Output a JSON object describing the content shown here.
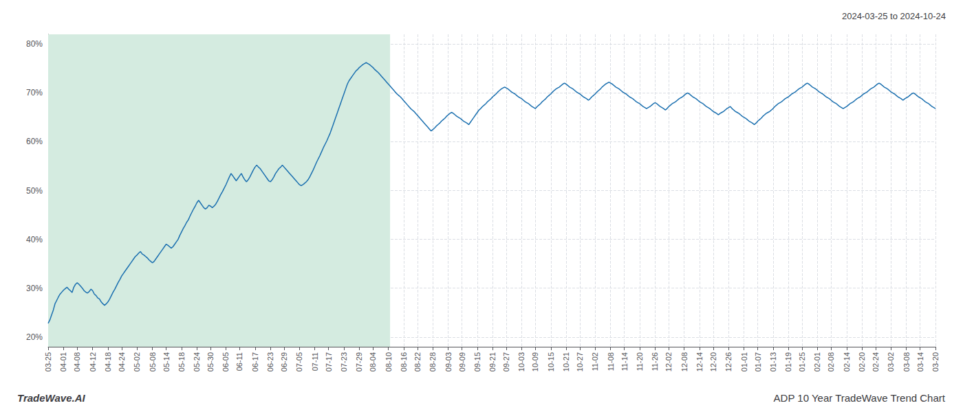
{
  "chart_data": {
    "type": "line",
    "title": "2024-03-25 to 2024-10-24",
    "annotations": [
      "TradeWave.AI",
      "ADP 10 Year TradeWave Trend Chart"
    ],
    "color": "#1a6faf",
    "grid": true,
    "ylim": [
      0.18,
      0.82
    ],
    "yticks": [
      {
        "value": 0.2,
        "label": "20%"
      },
      {
        "value": 0.3,
        "label": "30%"
      },
      {
        "value": 0.4,
        "label": "40%"
      },
      {
        "value": 0.5,
        "label": "50%"
      },
      {
        "value": 0.6,
        "label": "60%"
      },
      {
        "value": 0.7,
        "label": "70%"
      },
      {
        "value": 0.8,
        "label": "80%"
      }
    ],
    "shaded_span": {
      "from": 0,
      "to": 200,
      "color": "#d4ebe0"
    },
    "categories": [
      "03-25",
      null,
      null,
      null,
      null,
      null,
      null,
      null,
      null,
      "04-01",
      null,
      null,
      null,
      null,
      null,
      null,
      null,
      "04-08",
      null,
      null,
      null,
      null,
      null,
      null,
      null,
      null,
      "04-12",
      null,
      null,
      null,
      null,
      null,
      null,
      null,
      null,
      "04-18",
      null,
      null,
      null,
      null,
      null,
      null,
      null,
      "04-24",
      null,
      null,
      null,
      null,
      null,
      null,
      null,
      null,
      "05-02",
      null,
      null,
      null,
      null,
      null,
      null,
      null,
      null,
      "05-08",
      null,
      null,
      null,
      null,
      null,
      null,
      null,
      "05-14",
      null,
      null,
      null,
      null,
      null,
      null,
      null,
      null,
      "05-18",
      null,
      null,
      null,
      null,
      null,
      null,
      null,
      null,
      "05-24",
      null,
      null,
      null,
      null,
      null,
      null,
      null,
      "05-30",
      null,
      null,
      null,
      null,
      null,
      null,
      null,
      null,
      "06-05",
      null,
      null,
      null,
      null,
      null,
      null,
      null,
      "06-11",
      null,
      null,
      null,
      null,
      null,
      null,
      null,
      null,
      "06-17",
      null,
      null,
      null,
      null,
      null,
      null,
      null,
      null,
      "06-23",
      null,
      null,
      null,
      null,
      null,
      null,
      null,
      "06-29",
      null,
      null,
      null,
      null,
      null,
      null,
      null,
      null,
      "07-05",
      null,
      null,
      null,
      null,
      null,
      null,
      null,
      null,
      "07-11",
      null,
      null,
      null,
      null,
      null,
      null,
      null,
      "07-17",
      null,
      null,
      null,
      null,
      null,
      null,
      null,
      null,
      "07-23",
      null,
      null,
      null,
      null,
      null,
      null,
      null,
      null,
      "07-29",
      null,
      null,
      null,
      null,
      null,
      null,
      null,
      "08-04",
      null,
      null,
      null,
      null,
      null,
      null,
      null,
      null,
      "08-10",
      null,
      null,
      null,
      null,
      null,
      null,
      null,
      null,
      "08-16",
      null,
      null,
      null,
      null,
      null,
      null,
      null,
      "08-22",
      null,
      null,
      null,
      null,
      null,
      null,
      null,
      null,
      "08-28",
      null,
      null,
      null,
      null,
      null,
      null,
      null,
      null,
      "09-03",
      null,
      null,
      null,
      null,
      null,
      null,
      null,
      "09-09",
      null,
      null,
      null,
      null,
      null,
      null,
      null,
      null,
      "09-15",
      null,
      null,
      null,
      null,
      null,
      null,
      null,
      null,
      "09-21",
      null,
      null,
      null,
      null,
      null,
      null,
      null,
      "09-27",
      null,
      null,
      null,
      null,
      null,
      null,
      null,
      null,
      "10-03",
      null,
      null,
      null,
      null,
      null,
      null,
      null,
      "10-09",
      null,
      null,
      null,
      null,
      null,
      null,
      null,
      null,
      "10-15",
      null,
      null,
      null,
      null,
      null,
      null,
      null,
      null,
      "10-21",
      null,
      null,
      null,
      null,
      null,
      null,
      null,
      "10-27",
      null,
      null,
      null,
      null,
      null,
      null,
      null,
      null,
      "11-02",
      null,
      null,
      null,
      null,
      null,
      null,
      null,
      null,
      "11-08",
      null,
      null,
      null,
      null,
      null,
      null,
      null,
      "11-14",
      null,
      null,
      null,
      null,
      null,
      null,
      null,
      null,
      "11-20",
      null,
      null,
      null,
      null,
      null,
      null,
      null,
      null,
      "11-26",
      null,
      null,
      null,
      null,
      null,
      null,
      null,
      "12-02",
      null,
      null,
      null,
      null,
      null,
      null,
      null,
      null,
      "12-08",
      null,
      null,
      null,
      null,
      null,
      null,
      null,
      null,
      "12-14",
      null,
      null,
      null,
      null,
      null,
      null,
      null,
      "12-20",
      null,
      null,
      null,
      null,
      null,
      null,
      null,
      null,
      "12-26",
      null,
      null,
      null,
      null,
      null,
      null,
      null,
      null,
      "01-01",
      null,
      null,
      null,
      null,
      null,
      null,
      null,
      "01-07",
      null,
      null,
      null,
      null,
      null,
      null,
      null,
      null,
      "01-13",
      null,
      null,
      null,
      null,
      null,
      null,
      null,
      null,
      "01-19",
      null,
      null,
      null,
      null,
      null,
      null,
      null,
      "01-25",
      null,
      null,
      null,
      null,
      null,
      null,
      null,
      null,
      "02-01",
      null,
      null,
      null,
      null,
      null,
      null,
      null,
      "02-08",
      null,
      null,
      null,
      null,
      null,
      null,
      null,
      null,
      "02-14",
      null,
      null,
      null,
      null,
      null,
      null,
      null,
      null,
      "02-20",
      null,
      null,
      null,
      null,
      null,
      null,
      null,
      "02-24",
      null,
      null,
      null,
      null,
      null,
      null,
      null,
      null,
      "03-02",
      null,
      null,
      null,
      null,
      null,
      null,
      null,
      null,
      "03-08",
      null,
      null,
      null,
      null,
      null,
      null,
      null,
      "03-14",
      null,
      null,
      null,
      null,
      null,
      null,
      null,
      null,
      "03-20"
    ],
    "values": [
      0.228,
      0.235,
      0.245,
      0.255,
      0.268,
      0.275,
      0.282,
      0.288,
      0.292,
      0.296,
      0.299,
      0.302,
      0.298,
      0.295,
      0.291,
      0.302,
      0.308,
      0.311,
      0.308,
      0.304,
      0.3,
      0.295,
      0.292,
      0.29,
      0.293,
      0.298,
      0.295,
      0.288,
      0.285,
      0.28,
      0.278,
      0.272,
      0.268,
      0.265,
      0.268,
      0.272,
      0.278,
      0.285,
      0.292,
      0.298,
      0.305,
      0.312,
      0.318,
      0.325,
      0.33,
      0.335,
      0.34,
      0.345,
      0.35,
      0.355,
      0.36,
      0.365,
      0.368,
      0.372,
      0.375,
      0.37,
      0.368,
      0.365,
      0.362,
      0.358,
      0.355,
      0.352,
      0.355,
      0.36,
      0.365,
      0.37,
      0.375,
      0.38,
      0.385,
      0.39,
      0.388,
      0.385,
      0.382,
      0.385,
      0.39,
      0.395,
      0.4,
      0.408,
      0.415,
      0.422,
      0.428,
      0.435,
      0.44,
      0.448,
      0.455,
      0.462,
      0.468,
      0.475,
      0.48,
      0.475,
      0.47,
      0.465,
      0.462,
      0.465,
      0.47,
      0.468,
      0.465,
      0.468,
      0.472,
      0.478,
      0.485,
      0.492,
      0.498,
      0.505,
      0.512,
      0.52,
      0.528,
      0.535,
      0.53,
      0.525,
      0.52,
      0.525,
      0.53,
      0.535,
      0.528,
      0.522,
      0.518,
      0.522,
      0.528,
      0.535,
      0.542,
      0.548,
      0.552,
      0.548,
      0.545,
      0.54,
      0.535,
      0.53,
      0.525,
      0.52,
      0.518,
      0.522,
      0.528,
      0.535,
      0.54,
      0.545,
      0.548,
      0.552,
      0.548,
      0.544,
      0.54,
      0.536,
      0.532,
      0.528,
      0.524,
      0.52,
      0.516,
      0.512,
      0.51,
      0.512,
      0.515,
      0.518,
      0.522,
      0.528,
      0.535,
      0.542,
      0.55,
      0.558,
      0.565,
      0.572,
      0.58,
      0.588,
      0.595,
      0.602,
      0.61,
      0.618,
      0.628,
      0.638,
      0.648,
      0.658,
      0.668,
      0.678,
      0.688,
      0.698,
      0.708,
      0.718,
      0.725,
      0.73,
      0.735,
      0.74,
      0.745,
      0.748,
      0.752,
      0.755,
      0.758,
      0.76,
      0.762,
      0.76,
      0.758,
      0.755,
      0.752,
      0.748,
      0.745,
      0.742,
      0.738,
      0.734,
      0.73,
      0.726,
      0.722,
      0.718,
      0.714,
      0.71,
      0.706,
      0.702,
      0.698,
      0.695,
      0.692,
      0.688,
      0.684,
      0.68,
      0.676,
      0.672,
      0.668,
      0.665,
      0.662,
      0.658,
      0.654,
      0.65,
      0.646,
      0.642,
      0.638,
      0.634,
      0.63,
      0.626,
      0.622,
      0.625,
      0.628,
      0.632,
      0.635,
      0.638,
      0.642,
      0.645,
      0.648,
      0.652,
      0.655,
      0.658,
      0.66,
      0.658,
      0.655,
      0.652,
      0.65,
      0.648,
      0.645,
      0.642,
      0.64,
      0.638,
      0.635,
      0.64,
      0.645,
      0.65,
      0.655,
      0.66,
      0.665,
      0.668,
      0.672,
      0.675,
      0.678,
      0.682,
      0.685,
      0.688,
      0.692,
      0.695,
      0.698,
      0.702,
      0.705,
      0.708,
      0.71,
      0.712,
      0.71,
      0.708,
      0.705,
      0.702,
      0.7,
      0.698,
      0.695,
      0.692,
      0.69,
      0.688,
      0.685,
      0.682,
      0.68,
      0.678,
      0.675,
      0.672,
      0.67,
      0.668,
      0.672,
      0.675,
      0.678,
      0.682,
      0.685,
      0.688,
      0.692,
      0.695,
      0.698,
      0.702,
      0.705,
      0.708,
      0.71,
      0.712,
      0.715,
      0.718,
      0.72,
      0.718,
      0.715,
      0.712,
      0.71,
      0.708,
      0.705,
      0.702,
      0.7,
      0.698,
      0.695,
      0.692,
      0.69,
      0.688,
      0.685,
      0.688,
      0.692,
      0.695,
      0.698,
      0.702,
      0.705,
      0.708,
      0.712,
      0.715,
      0.718,
      0.72,
      0.722,
      0.72,
      0.718,
      0.715,
      0.712,
      0.71,
      0.708,
      0.705,
      0.702,
      0.7,
      0.698,
      0.695,
      0.692,
      0.69,
      0.688,
      0.685,
      0.682,
      0.68,
      0.678,
      0.675,
      0.672,
      0.67,
      0.668,
      0.67,
      0.672,
      0.675,
      0.678,
      0.68,
      0.678,
      0.675,
      0.672,
      0.67,
      0.668,
      0.665,
      0.668,
      0.672,
      0.675,
      0.678,
      0.68,
      0.682,
      0.685,
      0.688,
      0.69,
      0.692,
      0.695,
      0.698,
      0.7,
      0.698,
      0.695,
      0.692,
      0.69,
      0.688,
      0.685,
      0.682,
      0.68,
      0.678,
      0.675,
      0.672,
      0.67,
      0.668,
      0.665,
      0.662,
      0.66,
      0.658,
      0.655,
      0.658,
      0.66,
      0.662,
      0.665,
      0.668,
      0.67,
      0.672,
      0.668,
      0.665,
      0.662,
      0.66,
      0.658,
      0.655,
      0.652,
      0.65,
      0.648,
      0.645,
      0.642,
      0.64,
      0.638,
      0.635,
      0.638,
      0.642,
      0.645,
      0.648,
      0.652,
      0.655,
      0.658,
      0.66,
      0.662,
      0.665,
      0.668,
      0.672,
      0.675,
      0.678,
      0.68,
      0.682,
      0.685,
      0.688,
      0.69,
      0.692,
      0.695,
      0.698,
      0.7,
      0.702,
      0.705,
      0.708,
      0.71,
      0.712,
      0.715,
      0.718,
      0.72,
      0.718,
      0.715,
      0.712,
      0.71,
      0.708,
      0.705,
      0.702,
      0.7,
      0.698,
      0.695,
      0.692,
      0.69,
      0.688,
      0.685,
      0.682,
      0.68,
      0.678,
      0.675,
      0.672,
      0.67,
      0.668,
      0.67,
      0.672,
      0.675,
      0.678,
      0.68,
      0.682,
      0.685,
      0.688,
      0.69,
      0.692,
      0.695,
      0.698,
      0.7,
      0.702,
      0.705,
      0.708,
      0.71,
      0.712,
      0.715,
      0.718,
      0.72,
      0.718,
      0.715,
      0.712,
      0.71,
      0.708,
      0.705,
      0.702,
      0.7,
      0.698,
      0.695,
      0.692,
      0.69,
      0.688,
      0.685,
      0.688,
      0.69,
      0.692,
      0.695,
      0.698,
      0.7,
      0.698,
      0.695,
      0.692,
      0.69,
      0.688,
      0.685,
      0.682,
      0.68,
      0.678,
      0.675,
      0.672,
      0.67,
      0.668
    ]
  }
}
